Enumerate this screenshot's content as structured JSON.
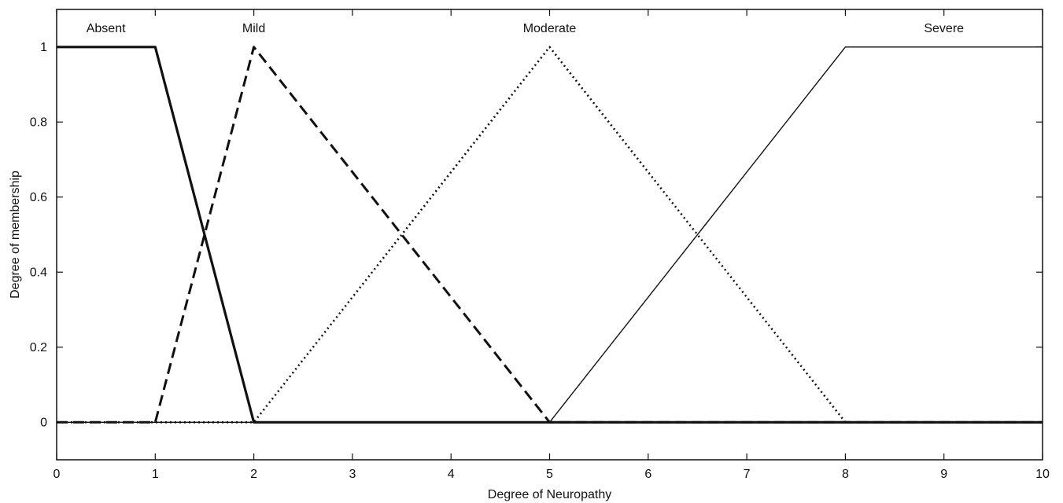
{
  "chart_data": {
    "type": "line",
    "title": "",
    "xlabel": "Degree of Neuropathy",
    "ylabel": "Degree of membership",
    "xlim": [
      0,
      10
    ],
    "ylim": [
      -0.1,
      1.1
    ],
    "xticks": [
      0,
      1,
      2,
      3,
      4,
      5,
      6,
      7,
      8,
      9,
      10
    ],
    "yticks": [
      0,
      0.2,
      0.4,
      0.6,
      0.8,
      1
    ],
    "ytick_labels": [
      "0",
      "0.2",
      "0.4",
      "0.6",
      "0.8",
      "1"
    ],
    "grid": false,
    "legend": "none",
    "series": [
      {
        "name": "Absent",
        "style": "solid-thick",
        "color": "#111111",
        "points": [
          [
            0,
            1
          ],
          [
            1,
            1
          ],
          [
            2,
            0
          ],
          [
            10,
            0
          ]
        ]
      },
      {
        "name": "Mild",
        "style": "dashed",
        "color": "#111111",
        "points": [
          [
            0,
            0
          ],
          [
            1,
            0
          ],
          [
            2,
            1
          ],
          [
            5,
            0
          ],
          [
            10,
            0
          ]
        ]
      },
      {
        "name": "Moderate",
        "style": "dotted",
        "color": "#111111",
        "points": [
          [
            0,
            0
          ],
          [
            2,
            0
          ],
          [
            5,
            1
          ],
          [
            8,
            0
          ],
          [
            10,
            0
          ]
        ]
      },
      {
        "name": "Severe",
        "style": "solid-thin",
        "color": "#111111",
        "points": [
          [
            0,
            0
          ],
          [
            5,
            0
          ],
          [
            8,
            1
          ],
          [
            10,
            1
          ]
        ]
      }
    ],
    "annotations": [
      {
        "text": "Absent",
        "x": 0.5,
        "y": 1.05
      },
      {
        "text": "Mild",
        "x": 2.0,
        "y": 1.05
      },
      {
        "text": "Moderate",
        "x": 5.0,
        "y": 1.05
      },
      {
        "text": "Severe",
        "x": 9.0,
        "y": 1.05
      }
    ]
  }
}
